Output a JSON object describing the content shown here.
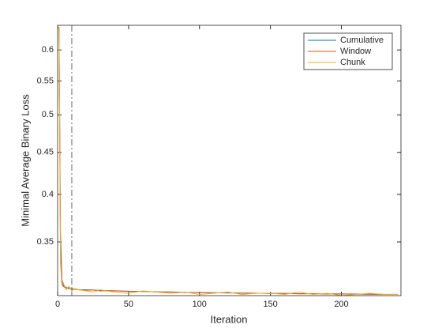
{
  "chart_data": {
    "type": "line",
    "xlabel": "Iteration",
    "ylabel": "Minimal Average Binary Loss",
    "x": [
      1,
      2,
      3,
      4,
      6,
      8,
      10,
      12,
      15,
      20,
      25,
      30,
      40,
      50,
      60,
      70,
      80,
      90,
      100,
      110,
      120,
      130,
      140,
      150,
      160,
      170,
      180,
      190,
      200,
      210,
      220,
      230,
      240
    ],
    "series": [
      {
        "name": "Cumulative",
        "color": "#0072BD",
        "values": [
          0.64,
          0.36,
          0.315,
          0.31,
          0.308,
          0.307,
          0.307,
          0.3065,
          0.306,
          0.306,
          0.3058,
          0.3055,
          0.305,
          0.3048,
          0.3045,
          0.3043,
          0.304,
          0.3038,
          0.3036,
          0.3035,
          0.3033,
          0.3032,
          0.303,
          0.3029,
          0.3028,
          0.3027,
          0.3026,
          0.3025,
          0.3024,
          0.3023,
          0.3022,
          0.3021,
          0.302
        ]
      },
      {
        "name": "Window",
        "color": "#D95319",
        "values": [
          0.64,
          0.35,
          0.312,
          0.309,
          0.307,
          0.308,
          0.306,
          0.3065,
          0.306,
          0.3055,
          0.3058,
          0.305,
          0.3052,
          0.3045,
          0.3047,
          0.304,
          0.3042,
          0.3036,
          0.3038,
          0.3033,
          0.3035,
          0.303,
          0.3032,
          0.3027,
          0.3029,
          0.3025,
          0.3027,
          0.3023,
          0.3025,
          0.3021,
          0.3023,
          0.302,
          0.3021
        ]
      },
      {
        "name": "Chunk",
        "color": "#EDB120",
        "values": [
          0.64,
          0.33,
          0.31,
          0.312,
          0.306,
          0.309,
          0.305,
          0.307,
          0.306,
          0.305,
          0.304,
          0.306,
          0.304,
          0.303,
          0.305,
          0.304,
          0.303,
          0.304,
          0.302,
          0.303,
          0.304,
          0.302,
          0.303,
          0.303,
          0.302,
          0.304,
          0.302,
          0.303,
          0.301,
          0.302,
          0.303,
          0.302,
          0.302
        ]
      }
    ],
    "xlim": [
      0,
      242
    ],
    "xticks": [
      0,
      50,
      100,
      150,
      200
    ],
    "ylim": [
      0.301,
      0.643
    ],
    "yticks": [
      0.35,
      0.4,
      0.45,
      0.5,
      0.55,
      0.6
    ],
    "yscale": "log",
    "vline": 10,
    "legend": "top-right"
  }
}
